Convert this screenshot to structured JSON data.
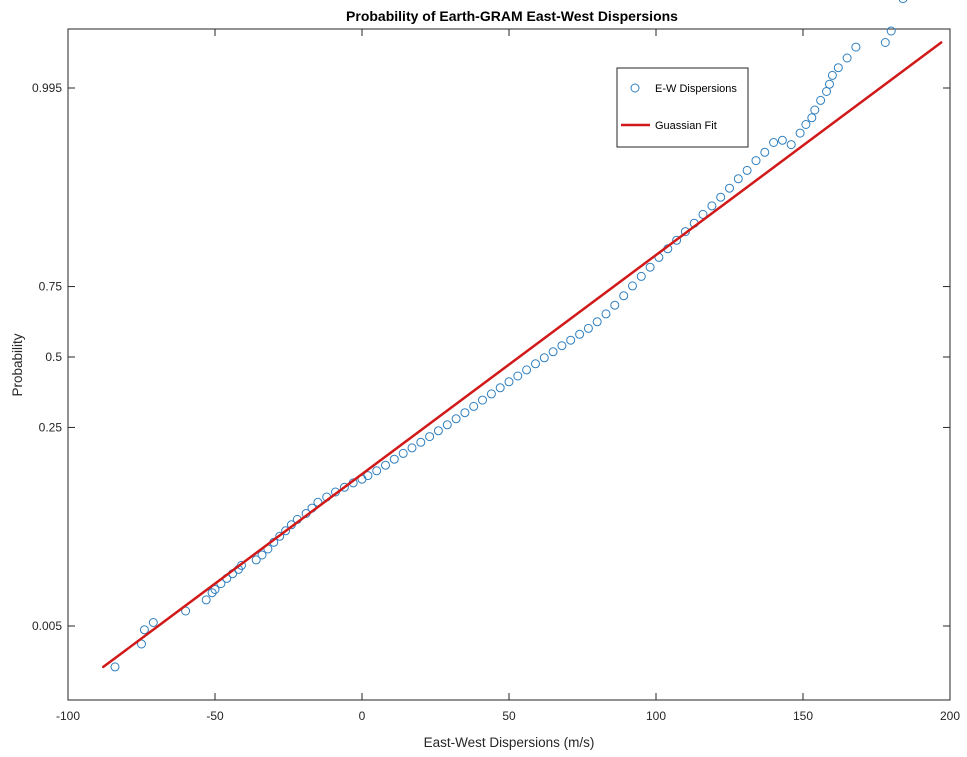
{
  "chart_data": {
    "type": "scatter",
    "title": "Probability of Earth-GRAM East-West Dispersions",
    "xlabel": "East-West Dispersions (m/s)",
    "ylabel": "Probability",
    "xlim": [
      -100,
      200
    ],
    "y_scale": "normal-probability",
    "x_ticks": [
      "-100",
      "-50",
      "0",
      "50",
      "100",
      "150",
      "200"
    ],
    "y_ticks": [
      "0.005",
      "0.25",
      "0.5",
      "0.75",
      "0.995"
    ],
    "grid": false,
    "legend_position": "top-right",
    "colors": {
      "points": "#2f7fbf",
      "fit": "#d11919"
    },
    "fit": {
      "name": "Guassian Fit",
      "x": [
        -88,
        197
      ],
      "probability": [
        0.0015,
        0.9987
      ]
    },
    "series": [
      {
        "name": "E-W Dispersions",
        "marker": "circle",
        "points": [
          [
            -84,
            0.0015
          ],
          [
            -75,
            0.003
          ],
          [
            -74,
            0.0045
          ],
          [
            -71,
            0.0055
          ],
          [
            -60,
            0.0075
          ],
          [
            -53,
            0.01
          ],
          [
            -51,
            0.012
          ],
          [
            -50,
            0.013
          ],
          [
            -48,
            0.015
          ],
          [
            -46,
            0.017
          ],
          [
            -44,
            0.019
          ],
          [
            -42,
            0.021
          ],
          [
            -41,
            0.023
          ],
          [
            -36,
            0.026
          ],
          [
            -34,
            0.029
          ],
          [
            -32,
            0.033
          ],
          [
            -30,
            0.038
          ],
          [
            -28,
            0.043
          ],
          [
            -26,
            0.048
          ],
          [
            -24,
            0.054
          ],
          [
            -22,
            0.06
          ],
          [
            -19,
            0.067
          ],
          [
            -17,
            0.074
          ],
          [
            -15,
            0.082
          ],
          [
            -12,
            0.09
          ],
          [
            -9,
            0.098
          ],
          [
            -6,
            0.106
          ],
          [
            -3,
            0.114
          ],
          [
            0,
            0.121
          ],
          [
            2,
            0.128
          ],
          [
            5,
            0.138
          ],
          [
            8,
            0.15
          ],
          [
            11,
            0.164
          ],
          [
            14,
            0.178
          ],
          [
            17,
            0.192
          ],
          [
            20,
            0.207
          ],
          [
            23,
            0.223
          ],
          [
            26,
            0.24
          ],
          [
            29,
            0.258
          ],
          [
            32,
            0.277
          ],
          [
            35,
            0.297
          ],
          [
            38,
            0.318
          ],
          [
            41,
            0.34
          ],
          [
            44,
            0.362
          ],
          [
            47,
            0.384
          ],
          [
            50,
            0.406
          ],
          [
            53,
            0.428
          ],
          [
            56,
            0.451
          ],
          [
            59,
            0.474
          ],
          [
            62,
            0.497
          ],
          [
            65,
            0.52
          ],
          [
            68,
            0.543
          ],
          [
            71,
            0.564
          ],
          [
            74,
            0.586
          ],
          [
            77,
            0.608
          ],
          [
            80,
            0.632
          ],
          [
            83,
            0.66
          ],
          [
            86,
            0.69
          ],
          [
            89,
            0.721
          ],
          [
            92,
            0.752
          ],
          [
            95,
            0.78
          ],
          [
            98,
            0.805
          ],
          [
            101,
            0.83
          ],
          [
            104,
            0.85
          ],
          [
            107,
            0.868
          ],
          [
            110,
            0.885
          ],
          [
            113,
            0.9
          ],
          [
            116,
            0.914
          ],
          [
            119,
            0.926
          ],
          [
            122,
            0.937
          ],
          [
            125,
            0.947
          ],
          [
            128,
            0.956
          ],
          [
            131,
            0.963
          ],
          [
            134,
            0.97
          ],
          [
            137,
            0.975
          ],
          [
            140,
            0.98
          ],
          [
            143,
            0.981
          ],
          [
            146,
            0.979
          ],
          [
            149,
            0.984
          ],
          [
            151,
            0.987
          ],
          [
            153,
            0.989
          ],
          [
            154,
            0.991
          ],
          [
            156,
            0.993
          ],
          [
            158,
            0.9945
          ],
          [
            159,
            0.9955
          ],
          [
            160,
            0.9965
          ],
          [
            162,
            0.9972
          ],
          [
            165,
            0.9979
          ],
          [
            168,
            0.9985
          ],
          [
            178,
            0.9987
          ],
          [
            180,
            0.9991
          ],
          [
            184,
            0.9997
          ]
        ]
      }
    ]
  }
}
